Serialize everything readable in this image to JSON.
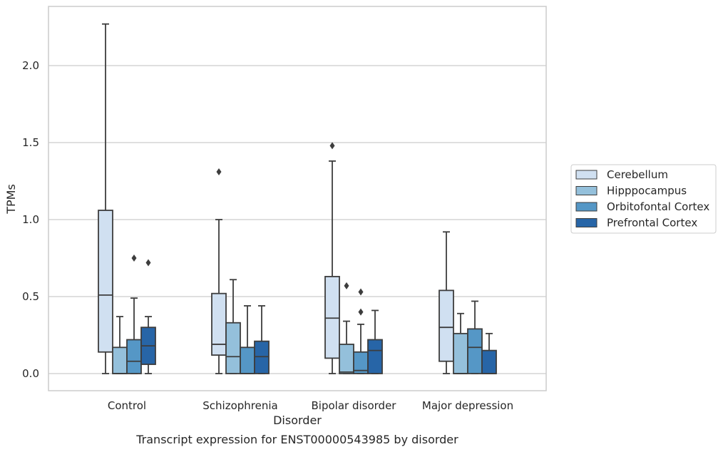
{
  "chart_data": {
    "type": "boxplot",
    "xlabel": "Disorder",
    "ylabel": "TPMs",
    "caption": "Transcript expression for ENST00000543985 by disorder",
    "ylim": [
      -0.11,
      2.4
    ],
    "yticks": [
      "0.0",
      "0.5",
      "1.0",
      "1.5",
      "2.0"
    ],
    "ytick_values": [
      0,
      0.5,
      1.0,
      1.5,
      2.0
    ],
    "grid": "horizontal",
    "legend_position": "right",
    "categories": [
      "Control",
      "Schizophrenia",
      "Bipolar disorder",
      "Major depression"
    ],
    "series": [
      {
        "name": "Cerebellum",
        "color": "#d0e0f1",
        "boxes": [
          {
            "whislo": 0.0,
            "q1": 0.14,
            "med": 0.51,
            "q3": 1.06,
            "whishi": 2.27,
            "fliers": []
          },
          {
            "whislo": 0.0,
            "q1": 0.12,
            "med": 0.19,
            "q3": 0.52,
            "whishi": 1.0,
            "fliers": [
              1.31
            ]
          },
          {
            "whislo": 0.0,
            "q1": 0.1,
            "med": 0.36,
            "q3": 0.63,
            "whishi": 1.38,
            "fliers": [
              1.48
            ]
          },
          {
            "whislo": 0.0,
            "q1": 0.08,
            "med": 0.3,
            "q3": 0.54,
            "whishi": 0.92,
            "fliers": []
          }
        ]
      },
      {
        "name": "Hipppocampus",
        "color": "#94c0db",
        "boxes": [
          {
            "whislo": 0.0,
            "q1": 0.0,
            "med": 0.0,
            "q3": 0.17,
            "whishi": 0.37,
            "fliers": []
          },
          {
            "whislo": 0.0,
            "q1": 0.0,
            "med": 0.11,
            "q3": 0.33,
            "whishi": 0.61,
            "fliers": []
          },
          {
            "whislo": 0.0,
            "q1": 0.0,
            "med": 0.01,
            "q3": 0.19,
            "whishi": 0.34,
            "fliers": [
              0.57
            ]
          },
          {
            "whislo": 0.0,
            "q1": 0.0,
            "med": 0.0,
            "q3": 0.26,
            "whishi": 0.39,
            "fliers": []
          }
        ]
      },
      {
        "name": "Orbitofontal Cortex",
        "color": "#5597c6",
        "boxes": [
          {
            "whislo": 0.0,
            "q1": 0.0,
            "med": 0.08,
            "q3": 0.22,
            "whishi": 0.49,
            "fliers": [
              0.75
            ]
          },
          {
            "whislo": 0.0,
            "q1": 0.0,
            "med": 0.0,
            "q3": 0.17,
            "whishi": 0.44,
            "fliers": []
          },
          {
            "whislo": 0.0,
            "q1": 0.0,
            "med": 0.02,
            "q3": 0.14,
            "whishi": 0.32,
            "fliers": [
              0.4,
              0.53
            ]
          },
          {
            "whislo": 0.0,
            "q1": 0.0,
            "med": 0.17,
            "q3": 0.29,
            "whishi": 0.47,
            "fliers": []
          }
        ]
      },
      {
        "name": "Prefrontal Cortex",
        "color": "#2765a7",
        "boxes": [
          {
            "whislo": 0.0,
            "q1": 0.06,
            "med": 0.18,
            "q3": 0.3,
            "whishi": 0.37,
            "fliers": [
              0.72
            ]
          },
          {
            "whislo": 0.0,
            "q1": 0.0,
            "med": 0.11,
            "q3": 0.21,
            "whishi": 0.44,
            "fliers": []
          },
          {
            "whislo": 0.0,
            "q1": 0.0,
            "med": 0.15,
            "q3": 0.22,
            "whishi": 0.41,
            "fliers": []
          },
          {
            "whislo": 0.0,
            "q1": 0.0,
            "med": 0.0,
            "q3": 0.15,
            "whishi": 0.26,
            "fliers": []
          }
        ]
      }
    ]
  }
}
